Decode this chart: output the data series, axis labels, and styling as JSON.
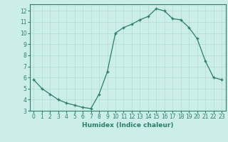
{
  "x": [
    0,
    1,
    2,
    3,
    4,
    5,
    6,
    7,
    8,
    9,
    10,
    11,
    12,
    13,
    14,
    15,
    16,
    17,
    18,
    19,
    20,
    21,
    22,
    23
  ],
  "y": [
    5.8,
    5.0,
    4.5,
    4.0,
    3.7,
    3.5,
    3.3,
    3.2,
    4.5,
    6.5,
    10.0,
    10.5,
    10.8,
    11.2,
    11.5,
    12.2,
    12.0,
    11.3,
    11.2,
    10.5,
    9.5,
    7.5,
    6.0,
    5.8
  ],
  "line_color": "#2d7d6e",
  "marker": "+",
  "marker_size": 3.5,
  "linewidth": 0.9,
  "bg_color": "#cceee8",
  "grid_color": "#b5d9d3",
  "xlabel": "Humidex (Indice chaleur)",
  "xlim": [
    -0.5,
    23.5
  ],
  "ylim": [
    3,
    12.6
  ],
  "yticks": [
    3,
    4,
    5,
    6,
    7,
    8,
    9,
    10,
    11,
    12
  ],
  "xticks": [
    0,
    1,
    2,
    3,
    4,
    5,
    6,
    7,
    8,
    9,
    10,
    11,
    12,
    13,
    14,
    15,
    16,
    17,
    18,
    19,
    20,
    21,
    22,
    23
  ],
  "xtick_labels": [
    "0",
    "1",
    "2",
    "3",
    "4",
    "5",
    "6",
    "7",
    "8",
    "9",
    "10",
    "11",
    "12",
    "13",
    "14",
    "15",
    "16",
    "17",
    "18",
    "19",
    "20",
    "21",
    "22",
    "23"
  ],
  "spine_color": "#2d7d6e",
  "tick_color": "#2d7d6e",
  "label_color": "#2d7d6e",
  "label_fontsize": 6.5,
  "tick_fontsize": 5.5
}
